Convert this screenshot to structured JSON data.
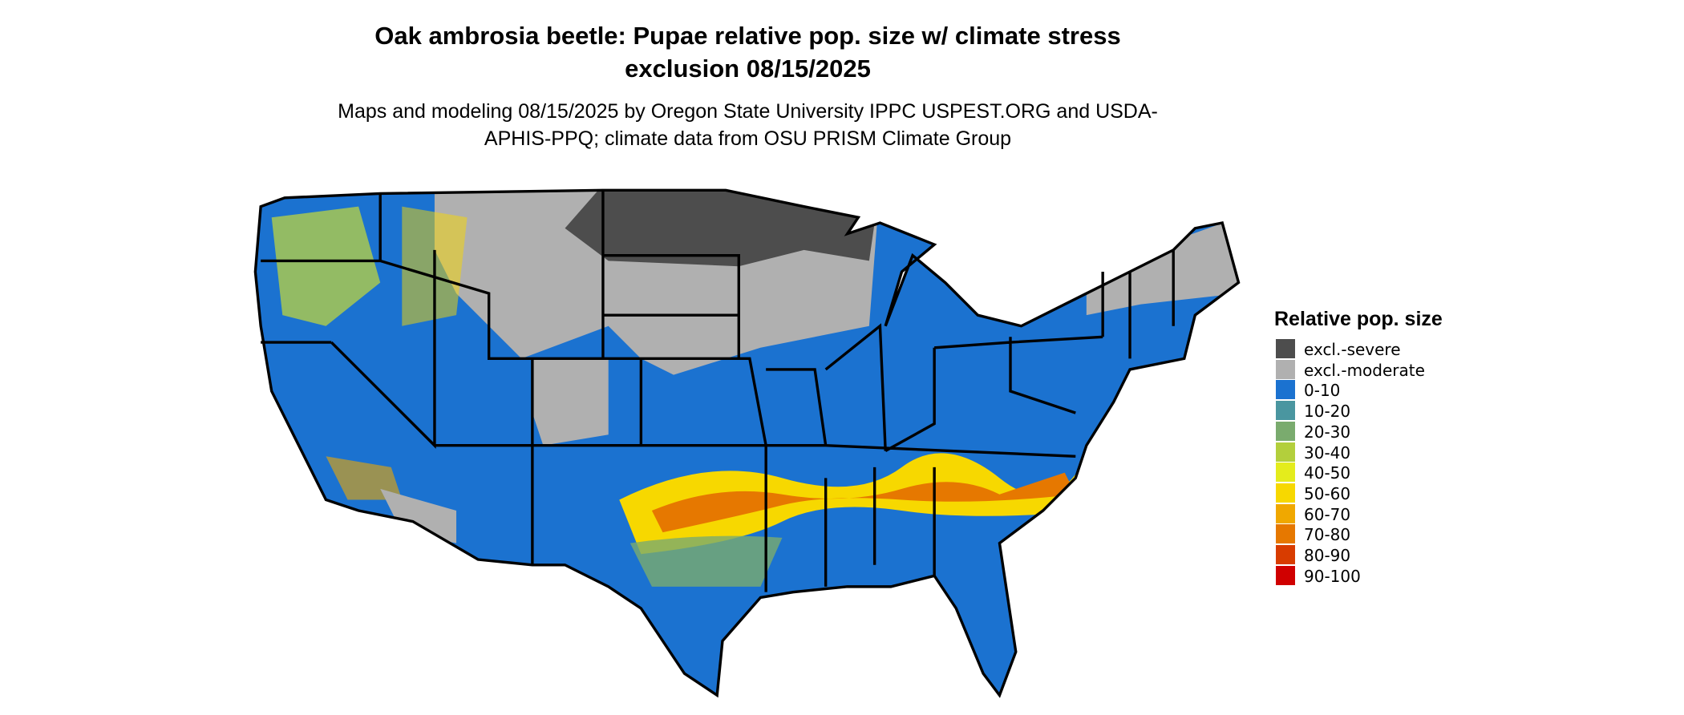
{
  "title": "Oak ambrosia beetle: Pupae relative pop. size w/ climate stress exclusion 08/15/2025",
  "subtitle": "Maps and modeling 08/15/2025 by Oregon State University IPPC USPEST.ORG and USDA-APHIS-PPQ; climate data from OSU PRISM Climate Group",
  "legend": {
    "title": "Relative pop. size",
    "items": [
      {
        "label": "excl.-severe",
        "color": "#4d4d4d"
      },
      {
        "label": "excl.-moderate",
        "color": "#b0b0b0"
      },
      {
        "label": "0-10",
        "color": "#1b72d0"
      },
      {
        "label": "10-20",
        "color": "#4a96a0"
      },
      {
        "label": "20-30",
        "color": "#7aab6e"
      },
      {
        "label": "30-40",
        "color": "#b3cf3c"
      },
      {
        "label": "40-50",
        "color": "#e4ec1c"
      },
      {
        "label": "50-60",
        "color": "#f7d800"
      },
      {
        "label": "60-70",
        "color": "#f0a800"
      },
      {
        "label": "70-80",
        "color": "#e67800"
      },
      {
        "label": "80-90",
        "color": "#d83c00"
      },
      {
        "label": "90-100",
        "color": "#d00000"
      }
    ]
  }
}
